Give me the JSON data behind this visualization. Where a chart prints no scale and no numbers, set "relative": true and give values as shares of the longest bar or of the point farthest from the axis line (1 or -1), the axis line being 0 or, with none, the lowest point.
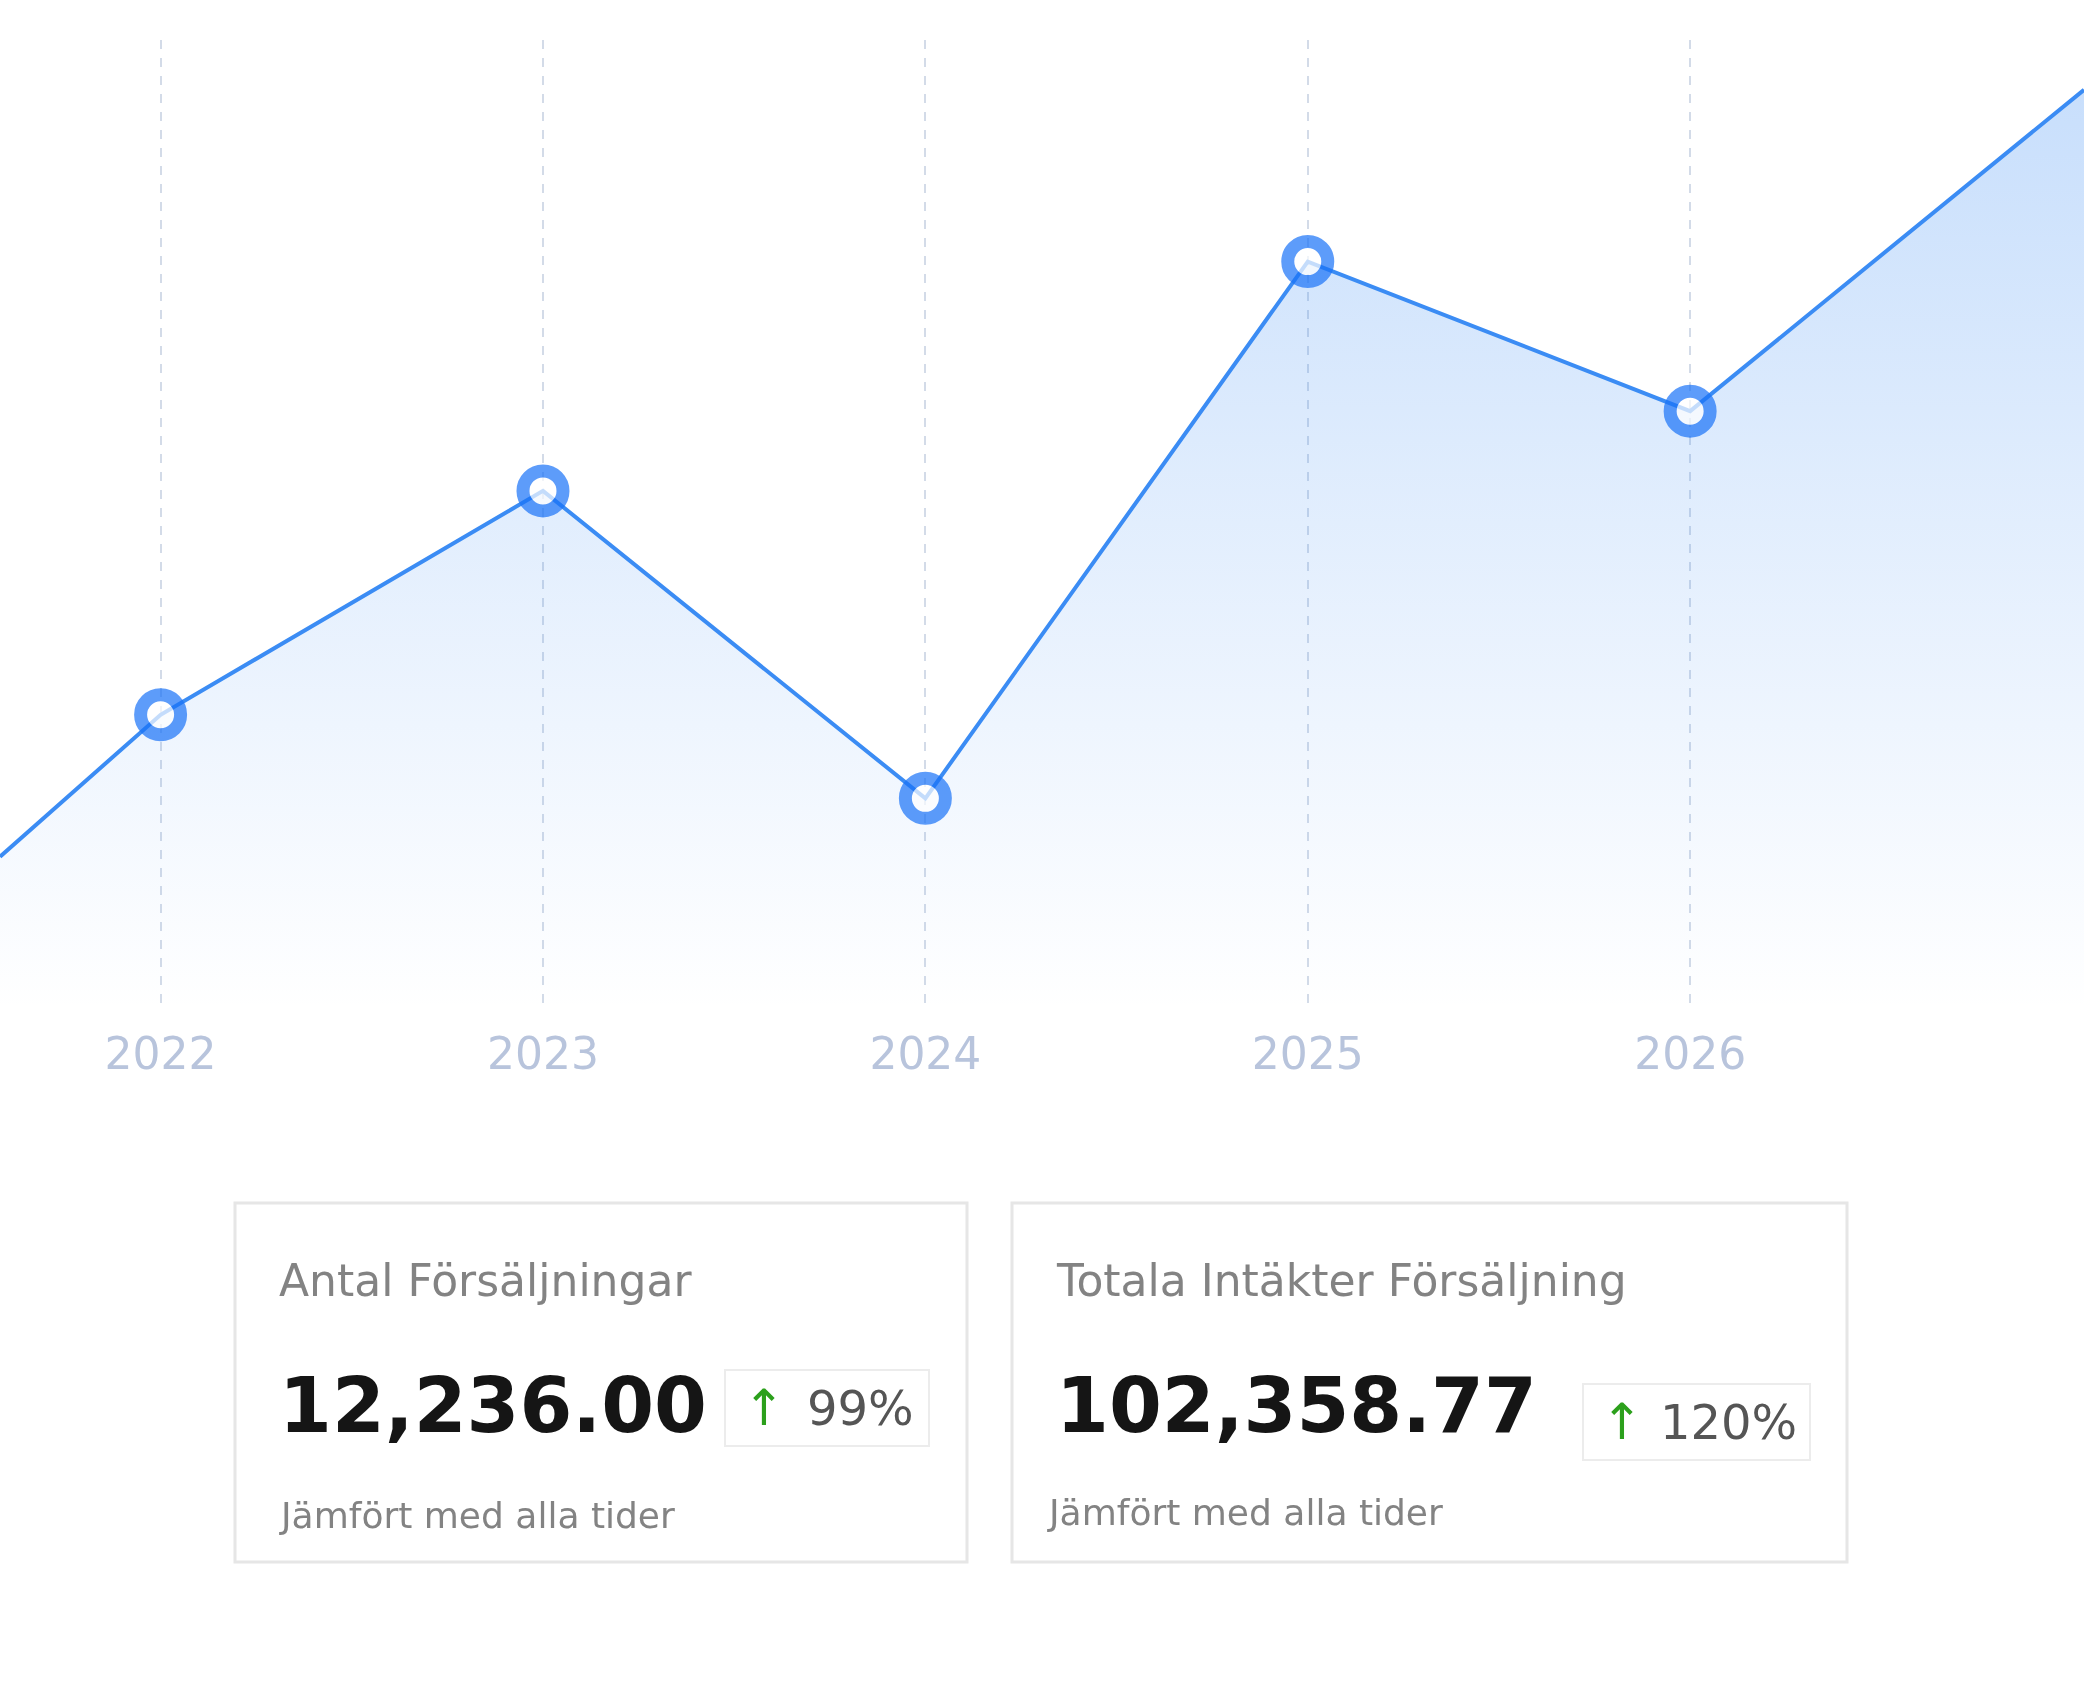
{
  "chart_data": [
    {
      "type": "area",
      "relative": true,
      "x": [
        2021.58,
        2022,
        2023,
        2024,
        2025,
        2026,
        2027.03
      ],
      "xlim": [
        2021.58,
        2027.03
      ],
      "xticks": [
        2022,
        2023,
        2024,
        2025,
        2026
      ],
      "series": [
        {
          "color": "#3b8cf4",
          "values": [
            0,
            0.185,
            0.477,
            0.076,
            0.776,
            0.581,
            1
          ]
        }
      ],
      "marker": "circle",
      "grid": "x",
      "tick_labels": "x"
    },
    {
      "type": "other",
      "title": "Antal Försäljningar",
      "annotations": [
        "12,236.00",
        "↑",
        "99%",
        "Jämfört med alla tider"
      ]
    },
    {
      "type": "other",
      "title": "Totala Intäkter Försäljning",
      "annotations": [
        "102,358.77",
        "↑",
        "120%",
        "Jämfört med alla tider"
      ]
    }
  ]
}
